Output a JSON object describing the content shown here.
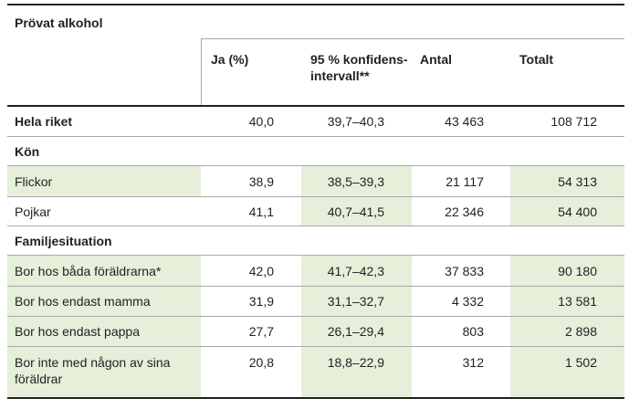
{
  "table": {
    "title": "Prövat alkohol",
    "columns": {
      "ja": "Ja (%)",
      "ci": "95 % konfidens-\nintervall**",
      "antal": "Antal",
      "totalt": "Totalt"
    },
    "rows": [
      {
        "label": "Hela riket",
        "ja": "40,0",
        "ci": "39,7–40,3",
        "antal": "43 463",
        "totalt": "108 712"
      },
      {
        "section": "Kön"
      },
      {
        "label": "Flickor",
        "ja": "38,9",
        "ci": "38,5–39,3",
        "antal": "21 117",
        "totalt": "54 313"
      },
      {
        "label": "Pojkar",
        "ja": "41,1",
        "ci": "40,7–41,5",
        "antal": "22 346",
        "totalt": "54 400"
      },
      {
        "section": "Familjesituation"
      },
      {
        "label": "Bor hos båda föräldrarna*",
        "ja": "42,0",
        "ci": "41,7–42,3",
        "antal": "37 833",
        "totalt": "90 180"
      },
      {
        "label": "Bor hos endast mamma",
        "ja": "31,9",
        "ci": "31,1–32,7",
        "antal": "4 332",
        "totalt": "13 581"
      },
      {
        "label": "Bor hos endast pappa",
        "ja": "27,7",
        "ci": "26,1–29,4",
        "antal": "803",
        "totalt": "2 898"
      },
      {
        "label": "Bor inte med någon av sina föräldrar",
        "ja": "20,8",
        "ci": "18,8–22,9",
        "antal": "312",
        "totalt": "1 502"
      }
    ]
  },
  "colors": {
    "shade": "#e6efd9",
    "rule": "#a7a9ac",
    "text": "#231f20"
  }
}
